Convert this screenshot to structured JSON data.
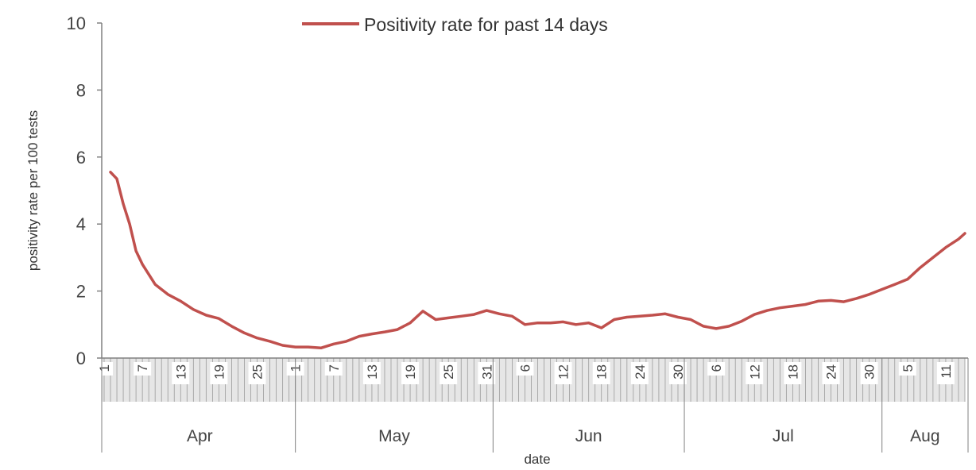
{
  "chart_data": {
    "type": "line",
    "title": "",
    "xlabel": "date",
    "ylabel": "positivity rate per 100 tests",
    "ylim": [
      0,
      10
    ],
    "yticks": [
      "0",
      "2",
      "4",
      "6",
      "8",
      "10"
    ],
    "legend": {
      "placement": "top",
      "entries": [
        "Positivity rate for past 14 days"
      ]
    },
    "grid": false,
    "color": "#c0504d",
    "months": [
      {
        "label": "Apr",
        "start": "2020-04-01",
        "end": "2020-04-30"
      },
      {
        "label": "May",
        "start": "2020-05-01",
        "end": "2020-05-31"
      },
      {
        "label": "Jun",
        "start": "2020-06-01",
        "end": "2020-06-30"
      },
      {
        "label": "Jul",
        "start": "2020-07-01",
        "end": "2020-07-31"
      },
      {
        "label": "Aug",
        "start": "2020-08-01",
        "end": "2020-08-14"
      }
    ],
    "x_tick_labels": [
      {
        "label": "1",
        "date": "2020-04-01"
      },
      {
        "label": "7",
        "date": "2020-04-07"
      },
      {
        "label": "13",
        "date": "2020-04-13"
      },
      {
        "label": "19",
        "date": "2020-04-19"
      },
      {
        "label": "25",
        "date": "2020-04-25"
      },
      {
        "label": "1",
        "date": "2020-05-01"
      },
      {
        "label": "7",
        "date": "2020-05-07"
      },
      {
        "label": "13",
        "date": "2020-05-13"
      },
      {
        "label": "19",
        "date": "2020-05-19"
      },
      {
        "label": "25",
        "date": "2020-05-25"
      },
      {
        "label": "31",
        "date": "2020-05-31"
      },
      {
        "label": "6",
        "date": "2020-06-06"
      },
      {
        "label": "12",
        "date": "2020-06-12"
      },
      {
        "label": "18",
        "date": "2020-06-18"
      },
      {
        "label": "24",
        "date": "2020-06-24"
      },
      {
        "label": "30",
        "date": "2020-06-30"
      },
      {
        "label": "6",
        "date": "2020-07-06"
      },
      {
        "label": "12",
        "date": "2020-07-12"
      },
      {
        "label": "18",
        "date": "2020-07-18"
      },
      {
        "label": "24",
        "date": "2020-07-24"
      },
      {
        "label": "30",
        "date": "2020-07-30"
      },
      {
        "label": "5",
        "date": "2020-08-05"
      },
      {
        "label": "11",
        "date": "2020-08-11"
      }
    ],
    "series": [
      {
        "name": "Positivity rate for past 14 days",
        "points": [
          [
            "2020-04-02",
            5.55
          ],
          [
            "2020-04-03",
            5.35
          ],
          [
            "2020-04-04",
            4.6
          ],
          [
            "2020-04-05",
            4.0
          ],
          [
            "2020-04-06",
            3.2
          ],
          [
            "2020-04-07",
            2.8
          ],
          [
            "2020-04-09",
            2.2
          ],
          [
            "2020-04-11",
            1.9
          ],
          [
            "2020-04-13",
            1.7
          ],
          [
            "2020-04-15",
            1.45
          ],
          [
            "2020-04-17",
            1.28
          ],
          [
            "2020-04-19",
            1.18
          ],
          [
            "2020-04-21",
            0.95
          ],
          [
            "2020-04-23",
            0.75
          ],
          [
            "2020-04-25",
            0.6
          ],
          [
            "2020-04-27",
            0.5
          ],
          [
            "2020-04-29",
            0.38
          ],
          [
            "2020-05-01",
            0.33
          ],
          [
            "2020-05-03",
            0.33
          ],
          [
            "2020-05-05",
            0.3
          ],
          [
            "2020-05-07",
            0.42
          ],
          [
            "2020-05-09",
            0.5
          ],
          [
            "2020-05-11",
            0.65
          ],
          [
            "2020-05-13",
            0.72
          ],
          [
            "2020-05-15",
            0.78
          ],
          [
            "2020-05-17",
            0.85
          ],
          [
            "2020-05-19",
            1.05
          ],
          [
            "2020-05-21",
            1.4
          ],
          [
            "2020-05-23",
            1.15
          ],
          [
            "2020-05-25",
            1.2
          ],
          [
            "2020-05-27",
            1.25
          ],
          [
            "2020-05-29",
            1.3
          ],
          [
            "2020-05-31",
            1.42
          ],
          [
            "2020-06-02",
            1.32
          ],
          [
            "2020-06-04",
            1.25
          ],
          [
            "2020-06-06",
            1.0
          ],
          [
            "2020-06-08",
            1.05
          ],
          [
            "2020-06-10",
            1.05
          ],
          [
            "2020-06-12",
            1.08
          ],
          [
            "2020-06-14",
            1.0
          ],
          [
            "2020-06-16",
            1.05
          ],
          [
            "2020-06-18",
            0.9
          ],
          [
            "2020-06-20",
            1.15
          ],
          [
            "2020-06-22",
            1.22
          ],
          [
            "2020-06-24",
            1.25
          ],
          [
            "2020-06-26",
            1.28
          ],
          [
            "2020-06-28",
            1.32
          ],
          [
            "2020-06-30",
            1.22
          ],
          [
            "2020-07-02",
            1.15
          ],
          [
            "2020-07-04",
            0.95
          ],
          [
            "2020-07-06",
            0.88
          ],
          [
            "2020-07-08",
            0.95
          ],
          [
            "2020-07-10",
            1.1
          ],
          [
            "2020-07-12",
            1.3
          ],
          [
            "2020-07-14",
            1.42
          ],
          [
            "2020-07-16",
            1.5
          ],
          [
            "2020-07-18",
            1.55
          ],
          [
            "2020-07-20",
            1.6
          ],
          [
            "2020-07-22",
            1.7
          ],
          [
            "2020-07-24",
            1.72
          ],
          [
            "2020-07-26",
            1.68
          ],
          [
            "2020-07-28",
            1.78
          ],
          [
            "2020-07-30",
            1.9
          ],
          [
            "2020-08-01",
            2.05
          ],
          [
            "2020-08-03",
            2.2
          ],
          [
            "2020-08-05",
            2.35
          ],
          [
            "2020-08-07",
            2.7
          ],
          [
            "2020-08-09",
            3.0
          ],
          [
            "2020-08-11",
            3.3
          ],
          [
            "2020-08-13",
            3.55
          ],
          [
            "2020-08-14",
            3.72
          ]
        ]
      }
    ]
  }
}
